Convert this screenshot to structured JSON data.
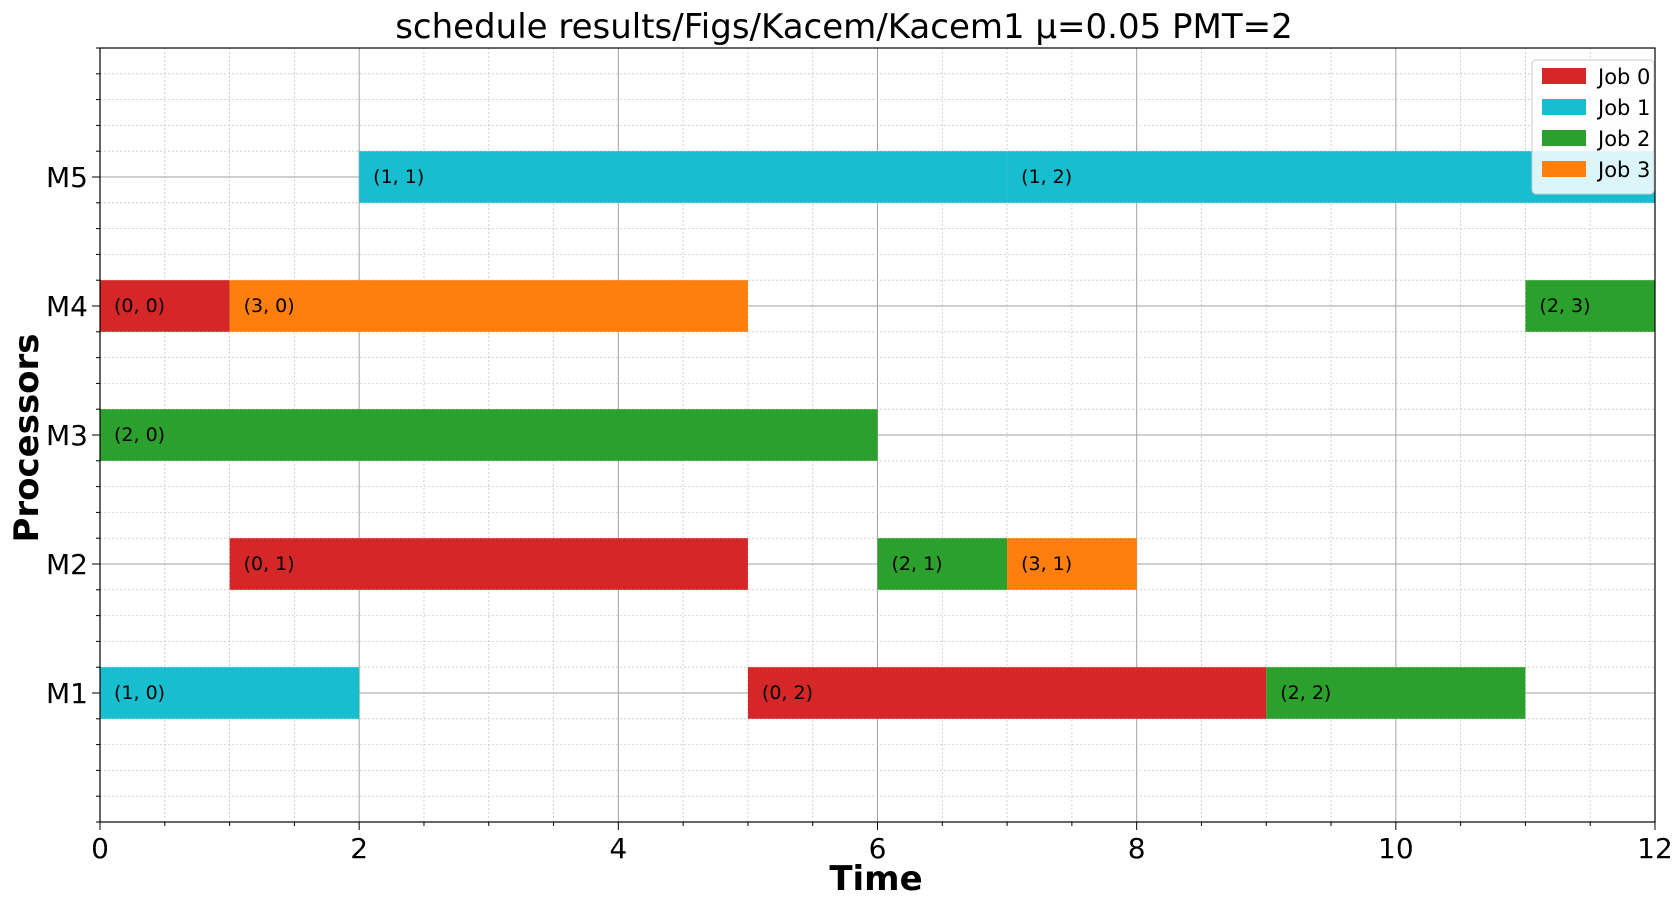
{
  "chart_data": {
    "type": "gantt",
    "title": "schedule results/Figs/Kacem/Kacem1 μ=0.05 PMT=2",
    "xlabel": "Time",
    "ylabel": "Processors",
    "xlim": [
      0,
      12
    ],
    "x_ticks": [
      "0",
      "2",
      "4",
      "6",
      "8",
      "10",
      "12"
    ],
    "x_minor_step": 0.5,
    "y_categories": [
      "M1",
      "M2",
      "M3",
      "M4",
      "M5"
    ],
    "ylim": [
      0,
      6
    ],
    "grid": true,
    "legend_position": "top-right",
    "series": [
      {
        "name": "Job 0",
        "color": "#d62728"
      },
      {
        "name": "Job 1",
        "color": "#17becf"
      },
      {
        "name": "Job 2",
        "color": "#2ca02c"
      },
      {
        "name": "Job 3",
        "color": "#ff7f0e"
      }
    ],
    "tasks": [
      {
        "machine": "M5",
        "job": 1,
        "start": 2,
        "end": 7,
        "label": "(1, 1)"
      },
      {
        "machine": "M5",
        "job": 1,
        "start": 7,
        "end": 12,
        "label": "(1, 2)"
      },
      {
        "machine": "M4",
        "job": 0,
        "start": 0,
        "end": 1,
        "label": "(0, 0)"
      },
      {
        "machine": "M4",
        "job": 3,
        "start": 1,
        "end": 5,
        "label": "(3, 0)"
      },
      {
        "machine": "M4",
        "job": 2,
        "start": 11,
        "end": 12,
        "label": "(2, 3)"
      },
      {
        "machine": "M3",
        "job": 2,
        "start": 0,
        "end": 6,
        "label": "(2, 0)"
      },
      {
        "machine": "M2",
        "job": 0,
        "start": 1,
        "end": 5,
        "label": "(0, 1)"
      },
      {
        "machine": "M2",
        "job": 2,
        "start": 6,
        "end": 7,
        "label": "(2, 1)"
      },
      {
        "machine": "M2",
        "job": 3,
        "start": 7,
        "end": 8,
        "label": "(3, 1)"
      },
      {
        "machine": "M1",
        "job": 1,
        "start": 0,
        "end": 2,
        "label": "(1, 0)"
      },
      {
        "machine": "M1",
        "job": 0,
        "start": 5,
        "end": 9,
        "label": "(0, 2)"
      },
      {
        "machine": "M1",
        "job": 2,
        "start": 9,
        "end": 11,
        "label": "(2, 2)"
      }
    ]
  }
}
